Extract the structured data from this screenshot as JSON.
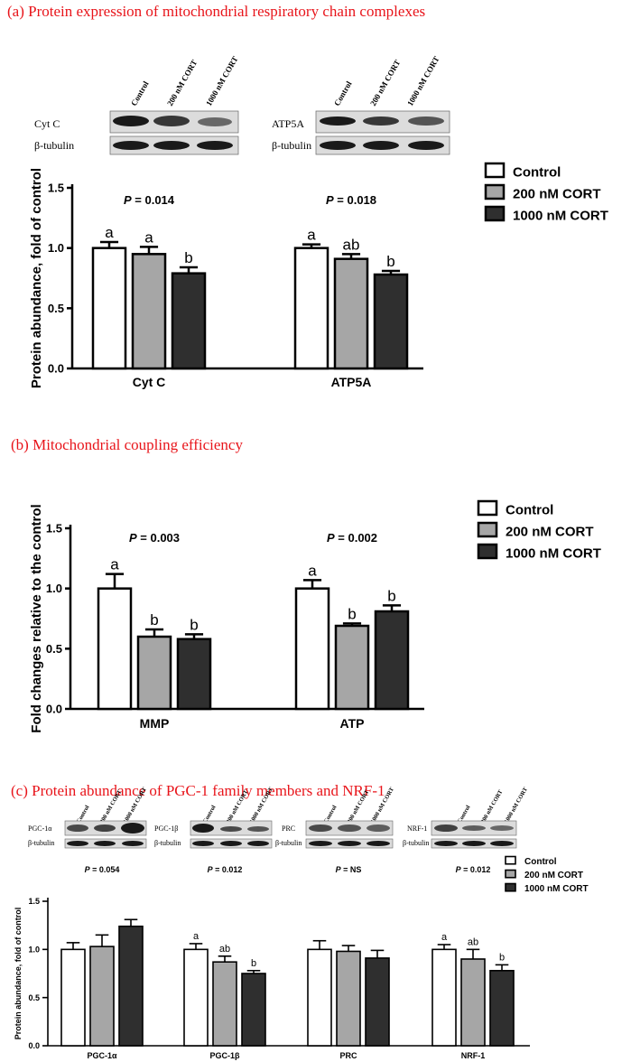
{
  "colors": {
    "control": "#ffffff",
    "cort200": "#a6a6a6",
    "cort1000": "#2f2f2f",
    "title": "#e8141a",
    "band": "#1a1a1a"
  },
  "blot_lanes": [
    "Control",
    "200 nM CORT",
    "1000 nM CORT"
  ],
  "chart_data": [
    {
      "id": "a",
      "type": "bar",
      "title": "(a) Protein expression of mitochondrial respiratory chain complexes",
      "ylabel": "Protein abundance, fold of control",
      "ylim": [
        0,
        1.5
      ],
      "yticks": [
        "0.0",
        "0.5",
        "1.0",
        "1.5"
      ],
      "categories": [
        "Cyt C",
        "ATP5A"
      ],
      "pvalues": [
        "0.014",
        "0.018"
      ],
      "series": [
        {
          "name": "Control",
          "values": [
            1.0,
            1.0
          ],
          "errors": [
            0.05,
            0.03
          ],
          "letters": [
            "a",
            "a"
          ]
        },
        {
          "name": "200 nM CORT",
          "values": [
            0.95,
            0.91
          ],
          "errors": [
            0.06,
            0.04
          ],
          "letters": [
            "a",
            "ab"
          ]
        },
        {
          "name": "1000 nM CORT",
          "values": [
            0.79,
            0.78
          ],
          "errors": [
            0.05,
            0.03
          ],
          "letters": [
            "b",
            "b"
          ]
        }
      ],
      "legend": [
        "Control",
        "200 nM CORT",
        "1000 nM CORT"
      ],
      "blots": [
        {
          "protein": "Cyt C",
          "loading": "β-tubulin"
        },
        {
          "protein": "ATP5A",
          "loading": "β-tubulin"
        }
      ]
    },
    {
      "id": "b",
      "type": "bar",
      "title": "(b) Mitochondrial coupling efficiency",
      "ylabel": "Fold changes relative to the control",
      "ylim": [
        0,
        1.5
      ],
      "yticks": [
        "0.0",
        "0.5",
        "1.0",
        "1.5"
      ],
      "categories": [
        "MMP",
        "ATP"
      ],
      "pvalues": [
        "0.003",
        "0.002"
      ],
      "series": [
        {
          "name": "Control",
          "values": [
            1.0,
            1.0
          ],
          "errors": [
            0.12,
            0.07
          ],
          "letters": [
            "a",
            "a"
          ]
        },
        {
          "name": "200 nM CORT",
          "values": [
            0.6,
            0.69
          ],
          "errors": [
            0.06,
            0.02
          ],
          "letters": [
            "b",
            "b"
          ]
        },
        {
          "name": "1000 nM CORT",
          "values": [
            0.58,
            0.81
          ],
          "errors": [
            0.04,
            0.05
          ],
          "letters": [
            "b",
            "b"
          ]
        }
      ],
      "legend": [
        "Control",
        "200 nM CORT",
        "1000 nM CORT"
      ]
    },
    {
      "id": "c",
      "type": "bar",
      "title": "(c) Protein abundance of PGC-1 family members and NRF-1",
      "ylabel": "Protein abundance, fold of control",
      "ylim": [
        0,
        1.5
      ],
      "yticks": [
        "0.0",
        "0.5",
        "1.0",
        "1.5"
      ],
      "categories": [
        "PGC-1α",
        "PGC-1β",
        "PRC",
        "NRF-1"
      ],
      "pvalues": [
        "0.054",
        "0.012",
        "NS",
        "0.012"
      ],
      "series": [
        {
          "name": "Control",
          "values": [
            1.0,
            1.0,
            1.0,
            1.0
          ],
          "errors": [
            0.07,
            0.06,
            0.09,
            0.05
          ],
          "letters": [
            "",
            "a",
            "",
            "a"
          ]
        },
        {
          "name": "200 nM CORT",
          "values": [
            1.03,
            0.87,
            0.98,
            0.9
          ],
          "errors": [
            0.12,
            0.06,
            0.06,
            0.1
          ],
          "letters": [
            "",
            "ab",
            "",
            "ab"
          ]
        },
        {
          "name": "1000 nM CORT",
          "values": [
            1.24,
            0.75,
            0.91,
            0.78
          ],
          "errors": [
            0.07,
            0.03,
            0.08,
            0.06
          ],
          "letters": [
            "",
            "b",
            "",
            "b"
          ]
        }
      ],
      "legend": [
        "Control",
        "200 nM CORT",
        "1000 nM CORT"
      ],
      "blots": [
        {
          "protein": "PGC-1α",
          "loading": "β-tubulin"
        },
        {
          "protein": "PGC-1β",
          "loading": "β-tubulin"
        },
        {
          "protein": "PRC",
          "loading": "β-tubulin"
        },
        {
          "protein": "NRF-1",
          "loading": "β-tubulin"
        }
      ]
    }
  ]
}
